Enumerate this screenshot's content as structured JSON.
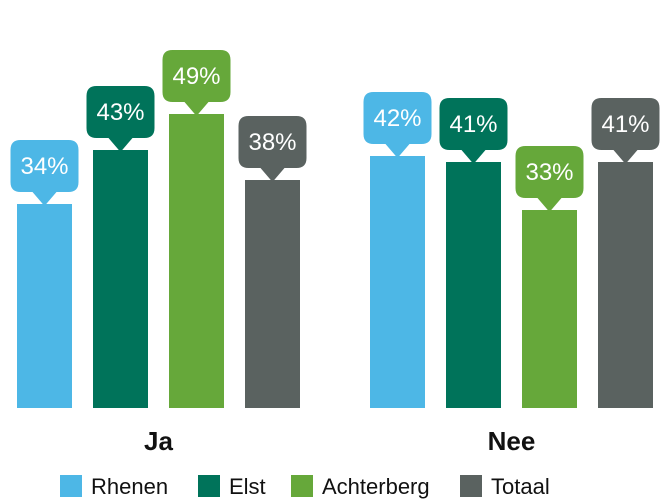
{
  "chart_data": {
    "type": "bar",
    "title": "",
    "xlabel": "",
    "ylabel": "",
    "categories": [
      "Ja",
      "Nee"
    ],
    "series": [
      {
        "name": "Rhenen",
        "color": "#4DB7E6",
        "values": [
          34,
          42
        ],
        "labels": [
          "34%",
          "42%"
        ]
      },
      {
        "name": "Elst",
        "color": "#00735A",
        "values": [
          43,
          41
        ],
        "labels": [
          "43%",
          "41%"
        ]
      },
      {
        "name": "Achterberg",
        "color": "#66A83A",
        "values": [
          49,
          33
        ],
        "labels": [
          "49%",
          "33%"
        ]
      },
      {
        "name": "Totaal",
        "color": "#5A6260",
        "values": [
          38,
          41
        ],
        "labels": [
          "38%",
          "41%"
        ]
      }
    ],
    "ylim": [
      0,
      60
    ],
    "grid": false,
    "legend_position": "bottom"
  }
}
